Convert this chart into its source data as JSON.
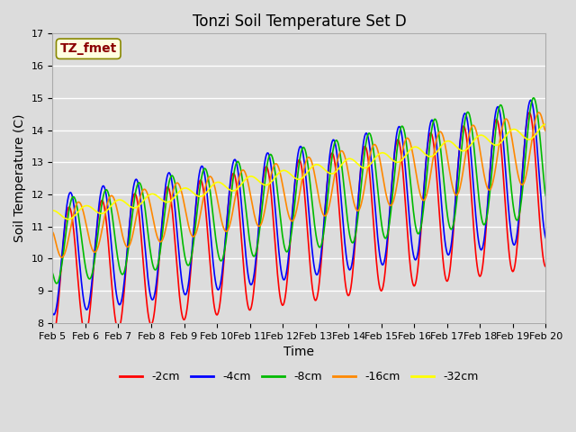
{
  "title": "Tonzi Soil Temperature Set D",
  "xlabel": "Time",
  "ylabel": "Soil Temperature (C)",
  "ylim": [
    8.0,
    17.0
  ],
  "annotation": "TZ_fmet",
  "xtick_labels": [
    "Feb 5",
    "Feb 6",
    "Feb 7",
    "Feb 8",
    "Feb 9",
    "Feb 10",
    "Feb 11",
    "Feb 12",
    "Feb 13",
    "Feb 14",
    "Feb 15",
    "Feb 16",
    "Feb 17",
    "Feb 18",
    "Feb 19",
    "Feb 20"
  ],
  "series": [
    {
      "label": "-2cm",
      "color": "#ff0000"
    },
    {
      "label": "-4cm",
      "color": "#0000ff"
    },
    {
      "label": "-8cm",
      "color": "#00bb00"
    },
    {
      "label": "-16cm",
      "color": "#ff8800"
    },
    {
      "label": "-32cm",
      "color": "#ffff00"
    }
  ],
  "bg_color": "#dcdcdc",
  "fig_color": "#dcdcdc",
  "title_fontsize": 12,
  "axis_fontsize": 10,
  "tick_fontsize": 8,
  "legend_fontsize": 9
}
